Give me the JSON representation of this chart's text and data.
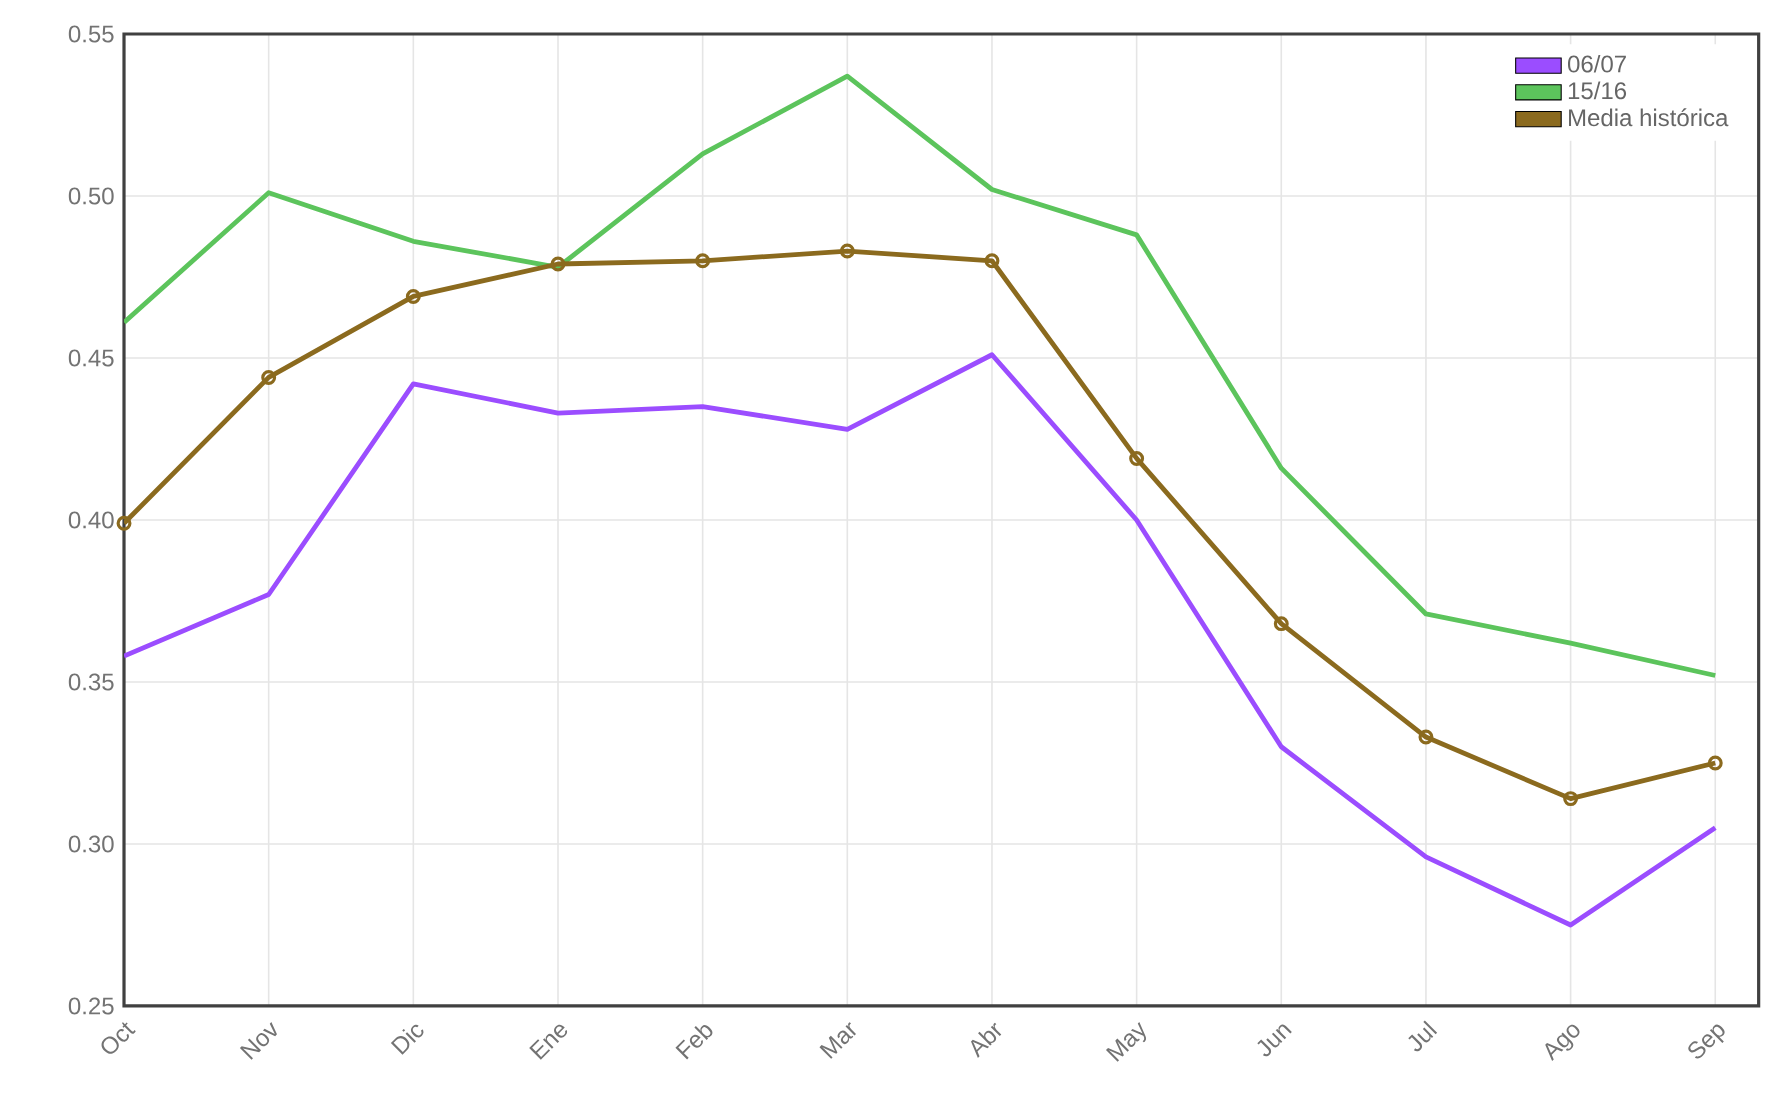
{
  "chart_data": {
    "type": "line",
    "categories": [
      "Oct",
      "Nov",
      "Dic",
      "Ene",
      "Feb",
      "Mar",
      "Abr",
      "May",
      "Jun",
      "Jul",
      "Ago",
      "Sep"
    ],
    "series": [
      {
        "name": "06/07",
        "color": "#9b4dff",
        "marker": "none",
        "values": [
          0.358,
          0.377,
          0.442,
          0.433,
          0.435,
          0.428,
          0.451,
          0.4,
          0.33,
          0.296,
          0.275,
          0.305
        ]
      },
      {
        "name": "15/16",
        "color": "#5cc45c",
        "marker": "none",
        "values": [
          0.461,
          0.501,
          0.486,
          0.478,
          0.513,
          0.537,
          0.502,
          0.488,
          0.416,
          0.371,
          0.362,
          0.352
        ]
      },
      {
        "name": "Media histórica",
        "color": "#8b6a1e",
        "marker": "circle",
        "values": [
          0.399,
          0.444,
          0.469,
          0.479,
          0.48,
          0.483,
          0.48,
          0.419,
          0.368,
          0.333,
          0.314,
          0.325
        ]
      }
    ],
    "ylim": [
      0.25,
      0.55
    ],
    "yticks": [
      0.25,
      {
        "value": 0.3,
        "label": "0.30"
      },
      0.35,
      {
        "value": 0.4,
        "label": "0.40"
      },
      0.45,
      {
        "value": 0.5,
        "label": "0.50"
      },
      0.55
    ],
    "grid": true,
    "legend": "top right",
    "line_style": "solid"
  }
}
